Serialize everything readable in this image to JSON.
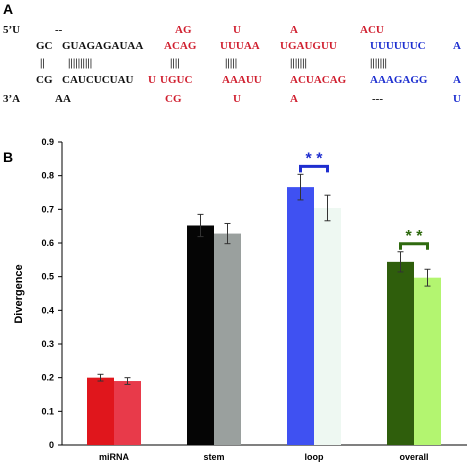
{
  "panel_a": {
    "label": "A",
    "rows": [
      [
        {
          "t": "5’U",
          "c": "black"
        },
        {
          "t": "--",
          "c": "black"
        },
        {
          "t": "AG",
          "c": "red"
        },
        {
          "t": "U",
          "c": "red"
        },
        {
          "t": "A",
          "c": "red"
        },
        {
          "t": "ACU",
          "c": "red"
        }
      ],
      [
        {
          "t": "GC",
          "c": "black"
        },
        {
          "t": "GUAGAGAUAA",
          "c": "black"
        },
        {
          "t": "ACAG",
          "c": "red"
        },
        {
          "t": "UUUAA",
          "c": "red"
        },
        {
          "t": "UGAUGUU",
          "c": "red"
        },
        {
          "t": "UUUUUUC",
          "c": "blue"
        },
        {
          "t": "A",
          "c": "blue"
        }
      ],
      [
        {
          "t": "||",
          "c": "black"
        },
        {
          "t": "||||||||||",
          "c": "black"
        },
        {
          "t": "||||",
          "c": "black"
        },
        {
          "t": "|||||",
          "c": "black"
        },
        {
          "t": "|||||||",
          "c": "black"
        },
        {
          "t": "|||||||",
          "c": "black"
        }
      ],
      [
        {
          "t": "CG",
          "c": "black"
        },
        {
          "t": "CAUCUCUAU",
          "c": "black"
        },
        {
          "t": "U",
          "c": "red"
        },
        {
          "t": "UGUC",
          "c": "red"
        },
        {
          "t": "AAAUU",
          "c": "red"
        },
        {
          "t": "ACUACAG",
          "c": "red"
        },
        {
          "t": "AAAGAGG",
          "c": "blue"
        },
        {
          "t": "A",
          "c": "blue"
        }
      ],
      [
        {
          "t": "3’A",
          "c": "black"
        },
        {
          "t": "AA",
          "c": "black"
        },
        {
          "t": "CG",
          "c": "red"
        },
        {
          "t": "U",
          "c": "red"
        },
        {
          "t": "A",
          "c": "red"
        },
        {
          "t": "---",
          "c": "black"
        },
        {
          "t": "U",
          "c": "blue"
        }
      ]
    ]
  },
  "panel_b": {
    "label": "B"
  },
  "chart_data": {
    "type": "bar",
    "categories": [
      "miRNA",
      "stem",
      "loop",
      "overall"
    ],
    "ylabel": "Divergence",
    "xlabel": "",
    "ylim": [
      0,
      0.9
    ],
    "yticks": [
      "0",
      "0.1",
      "0.2",
      "0.3",
      "0.4",
      "0.5",
      "0.6",
      "0.7",
      "0.8",
      "0.9"
    ],
    "grid": false,
    "legend": "none",
    "bars": [
      {
        "category": "miRNA",
        "value": 0.2,
        "err": 0.01,
        "color": "#e0161c"
      },
      {
        "category": "miRNA",
        "value": 0.19,
        "err": 0.01,
        "color": "#e83a4a"
      },
      {
        "category": "stem",
        "value": 0.652,
        "err": 0.033,
        "color": "#050505"
      },
      {
        "category": "stem",
        "value": 0.628,
        "err": 0.03,
        "color": "#9aa09e"
      },
      {
        "category": "loop",
        "value": 0.766,
        "err": 0.038,
        "color": "#3f51f2"
      },
      {
        "category": "loop",
        "value": 0.704,
        "err": 0.038,
        "color": "#eef8f2"
      },
      {
        "category": "overall",
        "value": 0.544,
        "err": 0.03,
        "color": "#2f5e0c"
      },
      {
        "category": "overall",
        "value": 0.497,
        "err": 0.025,
        "color": "#b3f570"
      }
    ],
    "annotations": [
      {
        "text": "* *",
        "group": "loop",
        "color": "#1f2ecf"
      },
      {
        "text": "* *",
        "group": "overall",
        "color": "#2f6a0f"
      }
    ]
  },
  "colors": {
    "red": "#d01f2f",
    "blue": "#1d2fd0",
    "black": "#111111"
  }
}
